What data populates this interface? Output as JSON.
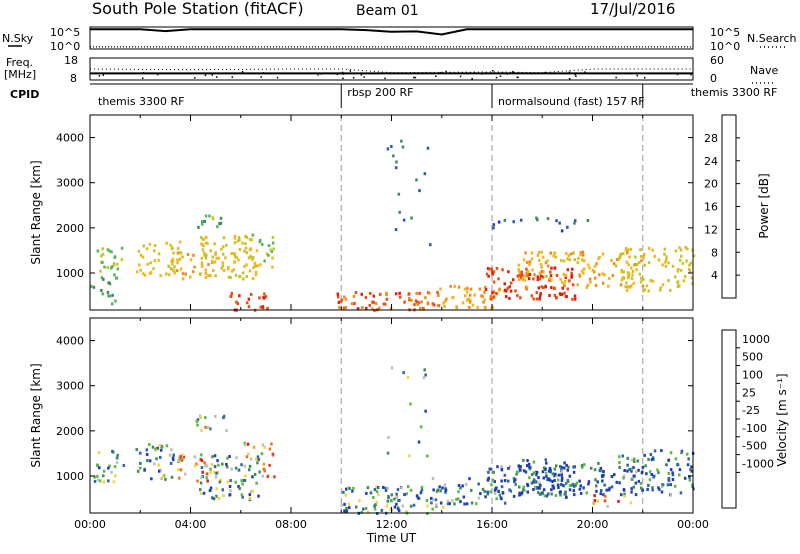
{
  "header": {
    "station": "South Pole Station (fitACF)",
    "beam": "Beam 01",
    "date": "17/Jul/2016"
  },
  "panels": {
    "nsky": {
      "label": "N.Sky",
      "right_label": "N.Search",
      "yticks_left": [
        "10^5",
        "10^0"
      ],
      "yticks_right": [
        "10^5",
        "10^0"
      ]
    },
    "freq": {
      "label_lines": [
        "Freq.",
        "[MHz]"
      ],
      "right_label": "Nave",
      "yticks_left": [
        "18",
        "8"
      ],
      "yticks_right": [
        "60",
        "0"
      ]
    },
    "cpid": {
      "label": "CPID",
      "segments": [
        {
          "name": "themis 3300 RF",
          "start": 0
        },
        {
          "name": "rbsp 200 RF",
          "start": 10
        },
        {
          "name": "normalsound (fast) 157 RF",
          "start": 16
        },
        {
          "name": "themis 3300 RF",
          "start": 22
        }
      ]
    }
  },
  "colors": {
    "power": [
      "#1f28e8",
      "#2b55a8",
      "#3c8a5a",
      "#56b35a",
      "#bfc62a",
      "#f2b51e",
      "#f08a1a",
      "#ea4d12",
      "#e31a0e"
    ],
    "velocity": [
      "#1f3fb0",
      "#2e64a8",
      "#3f8c58",
      "#5aba40",
      "#bdbdbd",
      "#f5d242",
      "#f5a020",
      "#f07020",
      "#e8401a",
      "#e3180e"
    ]
  },
  "chart_data": [
    {
      "type": "line",
      "title": "N.Sky / N.Search",
      "xlim": [
        0,
        24
      ],
      "ylim_left": [
        1,
        100000
      ],
      "ylim_right": [
        1,
        100000
      ],
      "scale": "log",
      "series": [
        {
          "name": "N.Sky",
          "style": "solid",
          "x": [
            0,
            1,
            2,
            3,
            4,
            5,
            6,
            7,
            8,
            9,
            10,
            11,
            12,
            13,
            14,
            15,
            16,
            17,
            18,
            19,
            20,
            21,
            22,
            23,
            24
          ],
          "y": [
            30000,
            30000,
            30000,
            12000,
            30000,
            30000,
            30000,
            30000,
            30000,
            30000,
            30000,
            20000,
            8000,
            10000,
            2000,
            30000,
            30000,
            30000,
            30000,
            30000,
            30000,
            30000,
            30000,
            30000,
            30000
          ]
        },
        {
          "name": "N.Search",
          "style": "dotted",
          "x": [
            0,
            2,
            4,
            6,
            8,
            10,
            12,
            14,
            16,
            18,
            20,
            22,
            24
          ],
          "y": [
            3,
            3,
            3,
            3,
            3,
            3,
            3,
            3,
            3,
            3,
            3,
            3,
            3
          ]
        }
      ]
    },
    {
      "type": "line",
      "title": "Freq. [MHz] / Nave",
      "xlim": [
        0,
        24
      ],
      "ylim_left": [
        8,
        18
      ],
      "ylim_right": [
        0,
        60
      ],
      "series": [
        {
          "name": "Freq.",
          "style": "solid",
          "x": [
            0,
            24
          ],
          "y": [
            11,
            11
          ]
        },
        {
          "name": "Nave",
          "style": "dotted",
          "x": [
            0,
            4,
            8,
            10,
            12,
            16,
            18,
            20,
            24
          ],
          "y": [
            30,
            28,
            30,
            30,
            20,
            22,
            20,
            30,
            30
          ]
        }
      ]
    },
    {
      "type": "heatmap",
      "title": "",
      "ylabel": "Slant Range [km]",
      "xlim": [
        0,
        24
      ],
      "ylim": [
        180,
        4500
      ],
      "yticks": [
        1000,
        2000,
        3000,
        4000
      ],
      "colorbar": {
        "label": "Power [dB]",
        "ticks": [
          4,
          8,
          12,
          16,
          20,
          24,
          28
        ],
        "range": [
          0,
          32
        ]
      },
      "blobs": [
        {
          "t": 0.7,
          "r": 1250,
          "dt": 0.6,
          "dr": 350,
          "v": 14,
          "d": 0.75
        },
        {
          "t": 2.7,
          "r": 1350,
          "dt": 0.9,
          "dr": 400,
          "v": 18,
          "d": 0.7
        },
        {
          "t": 4.2,
          "r": 1200,
          "dt": 0.8,
          "dr": 300,
          "v": 20,
          "d": 0.7
        },
        {
          "t": 5.5,
          "r": 1400,
          "dt": 1.2,
          "dr": 500,
          "v": 18,
          "d": 0.75
        },
        {
          "t": 6.7,
          "r": 1500,
          "dt": 0.6,
          "dr": 400,
          "v": 16,
          "d": 0.6
        },
        {
          "t": 4.8,
          "r": 2200,
          "dt": 0.6,
          "dr": 180,
          "v": 12,
          "d": 0.65
        },
        {
          "t": 6.3,
          "r": 400,
          "dt": 0.8,
          "dr": 200,
          "v": 28,
          "d": 0.9
        },
        {
          "t": 0.5,
          "r": 600,
          "dt": 0.5,
          "dr": 300,
          "v": 10,
          "d": 0.6
        },
        {
          "t": 12,
          "r": 400,
          "dt": 2.2,
          "dr": 200,
          "v": 26,
          "d": 0.9
        },
        {
          "t": 15,
          "r": 500,
          "dt": 1.5,
          "dr": 250,
          "v": 22,
          "d": 0.75
        },
        {
          "t": 17.5,
          "r": 800,
          "dt": 1.8,
          "dr": 350,
          "v": 28,
          "d": 0.9
        },
        {
          "t": 19.5,
          "r": 1100,
          "dt": 2.5,
          "dr": 400,
          "v": 20,
          "d": 0.75
        },
        {
          "t": 22.5,
          "r": 1100,
          "dt": 1.5,
          "dr": 500,
          "v": 18,
          "d": 0.7
        },
        {
          "t": 18,
          "r": 2100,
          "dt": 2.0,
          "dr": 150,
          "v": 6,
          "d": 0.2
        },
        {
          "t": 12.5,
          "r": 2700,
          "dt": 1.0,
          "dr": 1300,
          "v": 8,
          "d": 0.05
        }
      ]
    },
    {
      "type": "heatmap",
      "title": "",
      "xlabel": "Time UT",
      "ylabel": "Slant Range [km]",
      "xlim": [
        0,
        24
      ],
      "ylim": [
        180,
        4500
      ],
      "xticks": [
        "00:00",
        "04:00",
        "08:00",
        "12:00",
        "16:00",
        "20:00",
        "00:00"
      ],
      "yticks": [
        1000,
        2000,
        3000,
        4000
      ],
      "colorbar": {
        "label": "Velocity [m s⁻¹]",
        "ticks": [
          1000,
          500,
          100,
          25,
          -25,
          -100,
          -500,
          -1000
        ]
      },
      "blobs": [
        {
          "t": 0.7,
          "r": 1250,
          "dt": 0.6,
          "dr": 350,
          "v": 3,
          "d": 0.75
        },
        {
          "t": 2.7,
          "r": 1350,
          "dt": 0.9,
          "dr": 400,
          "v": 2,
          "d": 0.7
        },
        {
          "t": 4.2,
          "r": 1200,
          "dt": 0.8,
          "dr": 300,
          "v": 6,
          "d": 0.7
        },
        {
          "t": 5.5,
          "r": 1000,
          "dt": 1.2,
          "dr": 500,
          "v": 2,
          "d": 0.75
        },
        {
          "t": 6.7,
          "r": 1400,
          "dt": 0.6,
          "dr": 400,
          "v": 6,
          "d": 0.6
        },
        {
          "t": 4.8,
          "r": 2200,
          "dt": 0.6,
          "dr": 180,
          "v": 4,
          "d": 0.65
        },
        {
          "t": 12,
          "r": 500,
          "dt": 2.2,
          "dr": 300,
          "v": 2,
          "d": 0.85
        },
        {
          "t": 15,
          "r": 700,
          "dt": 1.5,
          "dr": 300,
          "v": 1,
          "d": 0.75
        },
        {
          "t": 17.5,
          "r": 900,
          "dt": 1.8,
          "dr": 350,
          "v": 1,
          "d": 0.8
        },
        {
          "t": 19.5,
          "r": 1000,
          "dt": 2.5,
          "dr": 400,
          "v": 0,
          "d": 0.7
        },
        {
          "t": 22.5,
          "r": 1100,
          "dt": 1.5,
          "dr": 500,
          "v": 1,
          "d": 0.7
        },
        {
          "t": 20.5,
          "r": 500,
          "dt": 1.0,
          "dr": 150,
          "v": 7,
          "d": 0.6
        },
        {
          "t": 12.5,
          "r": 2700,
          "dt": 1.0,
          "dr": 1300,
          "v": 2,
          "d": 0.05
        }
      ]
    }
  ]
}
